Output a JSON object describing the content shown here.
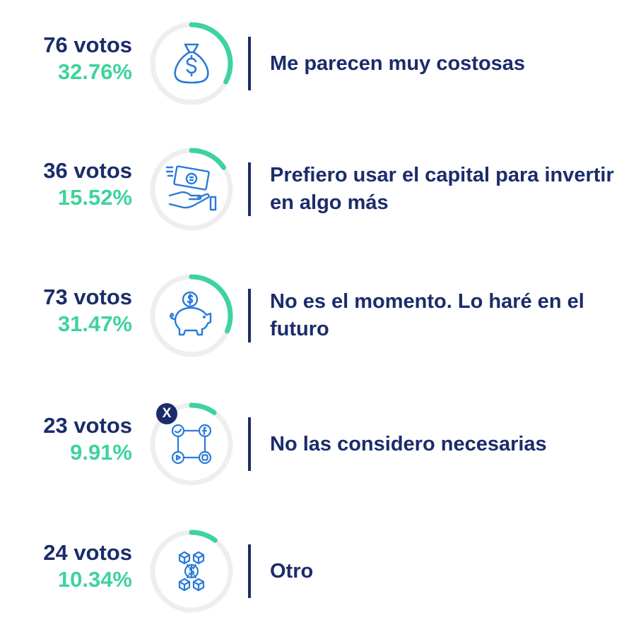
{
  "chart_data": {
    "type": "table",
    "items": [
      {
        "votes_label": "76 votos",
        "votes": 76,
        "percent_label": "32.76%",
        "percent": 32.76,
        "answer": "Me parecen muy costosas",
        "icon": "money-bag-icon"
      },
      {
        "votes_label": "36 votos",
        "votes": 36,
        "percent_label": "15.52%",
        "percent": 15.52,
        "answer": "Prefiero usar el capital para invertir en algo más",
        "icon": "cash-hand-icon"
      },
      {
        "votes_label": "73 votos",
        "votes": 73,
        "percent_label": "31.47%",
        "percent": 31.47,
        "answer": "No es el momento. Lo haré en el futuro",
        "icon": "piggy-bank-icon"
      },
      {
        "votes_label": "23 votos",
        "votes": 23,
        "percent_label": "9.91%",
        "percent": 9.91,
        "answer": "No las considero necesarias",
        "icon": "social-network-icon",
        "badge": "X"
      },
      {
        "votes_label": "24 votos",
        "votes": 24,
        "percent_label": "10.34%",
        "percent": 10.34,
        "answer": "Otro",
        "icon": "crypto-network-icon"
      }
    ]
  },
  "colors": {
    "navy": "#1b2c6b",
    "green": "#3ed39c",
    "track": "#eeeeee",
    "icon_blue": "#2a7ad8"
  }
}
